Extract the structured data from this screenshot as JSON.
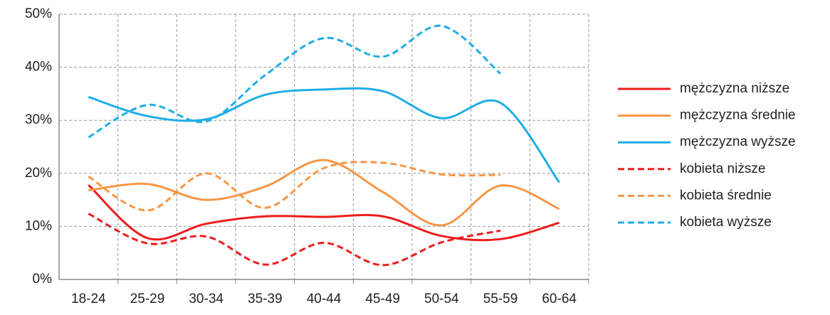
{
  "chart_data": {
    "type": "line",
    "categories": [
      "18-24",
      "25-29",
      "30-34",
      "35-39",
      "40-44",
      "45-49",
      "50-54",
      "55-59",
      "60-64"
    ],
    "series": [
      {
        "name": "mężczyzna niższe",
        "color": "#ee1c1c",
        "dashed": false,
        "values": [
          17.8,
          7.8,
          10.5,
          11.9,
          11.8,
          11.9,
          8.2,
          7.6,
          10.7
        ]
      },
      {
        "name": "mężczyzna średnie",
        "color": "#f79646",
        "dashed": false,
        "values": [
          16.8,
          18,
          15,
          17.5,
          22.5,
          16.5,
          10.2,
          17.7,
          13.3
        ]
      },
      {
        "name": "mężczyzna wyższe",
        "color": "#1fade6",
        "dashed": false,
        "values": [
          34.4,
          30.8,
          30.2,
          34.8,
          35.8,
          35.5,
          30.4,
          33.3,
          18.3
        ]
      },
      {
        "name": "kobieta niższe",
        "color": "#ee1c1c",
        "dashed": true,
        "values": [
          12.4,
          6.8,
          8.1,
          2.8,
          6.9,
          2.7,
          7,
          9.2,
          null
        ]
      },
      {
        "name": "kobieta średnie",
        "color": "#f79646",
        "dashed": true,
        "values": [
          19.4,
          13,
          20,
          13.5,
          21,
          22,
          19.8,
          19.7,
          null
        ]
      },
      {
        "name": "kobieta wyższe",
        "color": "#1fade6",
        "dashed": true,
        "values": [
          26.8,
          32.9,
          29.8,
          38.5,
          45.5,
          42,
          47.8,
          38.8,
          null
        ]
      }
    ],
    "ylim": [
      0,
      50
    ],
    "yticks": [
      {
        "value": 0,
        "label": "0%"
      },
      {
        "value": 10,
        "label": "10%"
      },
      {
        "value": 20,
        "label": "20%"
      },
      {
        "value": 30,
        "label": "30%"
      },
      {
        "value": 40,
        "label": "40%"
      },
      {
        "value": 50,
        "label": "50%"
      }
    ],
    "grid": true,
    "legend": "right"
  }
}
